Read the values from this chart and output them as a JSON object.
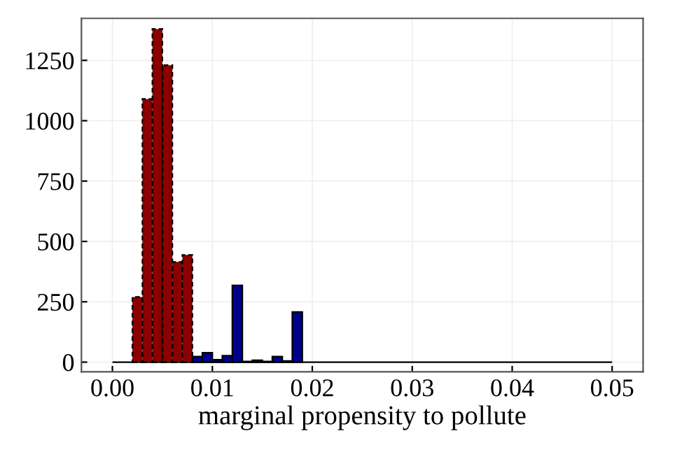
{
  "chart_data": {
    "type": "histogram",
    "xlabel": "marginal propensity to pollute",
    "bins": [
      0.0,
      0.001,
      0.002,
      0.003,
      0.004,
      0.005,
      0.006,
      0.007,
      0.008,
      0.009,
      0.01,
      0.011,
      0.012,
      0.013,
      0.014,
      0.015,
      0.016,
      0.017,
      0.018,
      0.019,
      0.02,
      0.021,
      0.022,
      0.023,
      0.024,
      0.025,
      0.026,
      0.027,
      0.028,
      0.029,
      0.03,
      0.031,
      0.032,
      0.033,
      0.034,
      0.035,
      0.036,
      0.037,
      0.038,
      0.039,
      0.04,
      0.041,
      0.042,
      0.043,
      0.044,
      0.045,
      0.046,
      0.047,
      0.048,
      0.049,
      0.05
    ],
    "series": [
      {
        "color": "#8b0000",
        "line_style": "dashed",
        "values": [
          0,
          0,
          270,
          1090,
          1380,
          1230,
          415,
          444,
          0,
          0,
          0,
          0,
          0,
          0,
          0,
          0,
          0,
          0,
          0,
          0,
          0,
          0,
          0,
          0,
          0,
          0,
          0,
          0,
          0,
          0,
          0,
          0,
          0,
          0,
          0,
          0,
          0,
          0,
          0,
          0,
          0,
          0,
          0,
          0,
          0,
          0,
          0,
          0,
          0,
          0
        ]
      },
      {
        "color": "#00008b",
        "line_style": "solid",
        "values": [
          0,
          0,
          0,
          0,
          0,
          0,
          0,
          0,
          23,
          39,
          10,
          27,
          318,
          3,
          8,
          3,
          23,
          5,
          208,
          0,
          0,
          0,
          0,
          0,
          0,
          0,
          0,
          0,
          0,
          0,
          0,
          0,
          0,
          0,
          0,
          0,
          0,
          0,
          0,
          0,
          0,
          0,
          0,
          0,
          0,
          0,
          0,
          0,
          0,
          0
        ]
      }
    ],
    "ref_lines": [
      {
        "axis": "y",
        "value": 0,
        "color": "#000000"
      }
    ],
    "xlim": [
      -0.0031,
      0.0531
    ],
    "ylim": [
      -40,
      1424
    ],
    "xticks": [
      {
        "value": 0,
        "label": "0.00"
      },
      {
        "value": 0.01,
        "label": "0.01"
      },
      {
        "value": 0.02,
        "label": "0.02"
      },
      {
        "value": 0.03,
        "label": "0.03"
      },
      {
        "value": 0.04,
        "label": "0.04"
      },
      {
        "value": 0.05,
        "label": "0.05"
      }
    ],
    "yticks": [
      0,
      250,
      500,
      750,
      1000,
      1250
    ],
    "grid": true
  }
}
